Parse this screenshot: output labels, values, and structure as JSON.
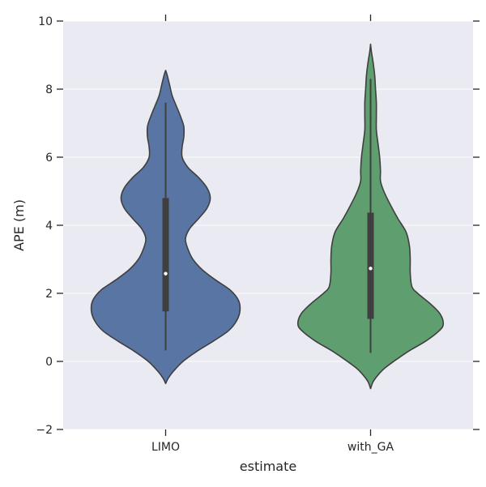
{
  "chart_data": {
    "type": "violin",
    "title": "",
    "xlabel": "estimate",
    "ylabel": "APE (m)",
    "ylim": [
      -2,
      10
    ],
    "yticks": [
      -2,
      0,
      2,
      4,
      6,
      8,
      10
    ],
    "ytick_labels": [
      "−2",
      "0",
      "2",
      "4",
      "6",
      "8",
      "10"
    ],
    "categories": [
      "LIMO",
      "with_GA"
    ],
    "grid": true,
    "background": "#eaeaf2",
    "series": [
      {
        "category": "LIMO",
        "color": "#5975a4",
        "min": 0.32,
        "q1": 1.47,
        "median": 2.58,
        "q3": 4.8,
        "max": 7.6,
        "density": [
          [
            -0.65,
            0.0
          ],
          [
            -0.5,
            0.03
          ],
          [
            -0.3,
            0.09
          ],
          [
            0.0,
            0.21
          ],
          [
            0.3,
            0.38
          ],
          [
            0.6,
            0.58
          ],
          [
            0.9,
            0.76
          ],
          [
            1.2,
            0.86
          ],
          [
            1.5,
            0.9
          ],
          [
            1.8,
            0.88
          ],
          [
            2.1,
            0.78
          ],
          [
            2.4,
            0.6
          ],
          [
            2.7,
            0.44
          ],
          [
            3.0,
            0.33
          ],
          [
            3.3,
            0.27
          ],
          [
            3.6,
            0.24
          ],
          [
            3.9,
            0.29
          ],
          [
            4.2,
            0.4
          ],
          [
            4.5,
            0.5
          ],
          [
            4.8,
            0.54
          ],
          [
            5.1,
            0.5
          ],
          [
            5.4,
            0.4
          ],
          [
            5.7,
            0.27
          ],
          [
            6.0,
            0.2
          ],
          [
            6.3,
            0.2
          ],
          [
            6.6,
            0.22
          ],
          [
            6.9,
            0.22
          ],
          [
            7.2,
            0.18
          ],
          [
            7.5,
            0.13
          ],
          [
            7.8,
            0.08
          ],
          [
            8.1,
            0.05
          ],
          [
            8.4,
            0.02
          ],
          [
            8.55,
            0.0
          ]
        ]
      },
      {
        "category": "with_GA",
        "color": "#5f9e6e",
        "min": 0.25,
        "q1": 1.25,
        "median": 2.73,
        "q3": 4.37,
        "max": 8.3,
        "density": [
          [
            -0.8,
            0.0
          ],
          [
            -0.6,
            0.03
          ],
          [
            -0.4,
            0.09
          ],
          [
            -0.2,
            0.17
          ],
          [
            0.0,
            0.28
          ],
          [
            0.3,
            0.46
          ],
          [
            0.6,
            0.67
          ],
          [
            0.9,
            0.83
          ],
          [
            1.1,
            0.88
          ],
          [
            1.4,
            0.84
          ],
          [
            1.7,
            0.72
          ],
          [
            2.0,
            0.57
          ],
          [
            2.2,
            0.5
          ],
          [
            2.6,
            0.48
          ],
          [
            3.0,
            0.48
          ],
          [
            3.4,
            0.47
          ],
          [
            3.8,
            0.43
          ],
          [
            4.2,
            0.33
          ],
          [
            4.6,
            0.24
          ],
          [
            5.0,
            0.16
          ],
          [
            5.3,
            0.12
          ],
          [
            5.6,
            0.12
          ],
          [
            6.0,
            0.11
          ],
          [
            6.4,
            0.09
          ],
          [
            6.8,
            0.07
          ],
          [
            7.2,
            0.07
          ],
          [
            7.6,
            0.07
          ],
          [
            8.0,
            0.06
          ],
          [
            8.4,
            0.05
          ],
          [
            8.8,
            0.03
          ],
          [
            9.1,
            0.01
          ],
          [
            9.32,
            0.0
          ]
        ]
      }
    ]
  }
}
